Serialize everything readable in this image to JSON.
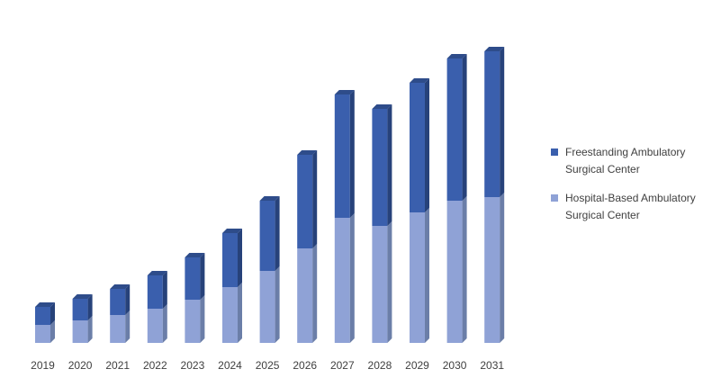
{
  "chart_data": {
    "type": "bar",
    "stacked": true,
    "categories": [
      "2019",
      "2020",
      "2021",
      "2022",
      "2023",
      "2024",
      "2025",
      "2026",
      "2027",
      "2028",
      "2029",
      "2030",
      "2031"
    ],
    "series": [
      {
        "name": "Hospital-Based Ambulatory Surgical Center",
        "values": [
          20,
          25,
          31,
          38,
          48,
          62,
          80,
          105,
          139,
          130,
          145,
          158,
          162
        ],
        "color": "#8fa2d6",
        "side_color": "#6b7ea8"
      },
      {
        "name": "Freestanding Ambulatory Surgical Center",
        "values": [
          20,
          24,
          29,
          37,
          47,
          60,
          78,
          104,
          137,
          130,
          144,
          158,
          162
        ],
        "color": "#3a5fad",
        "side_color": "#27427a"
      }
    ],
    "legend_position": "right",
    "grid": false,
    "ylim": [
      0,
      330
    ]
  }
}
